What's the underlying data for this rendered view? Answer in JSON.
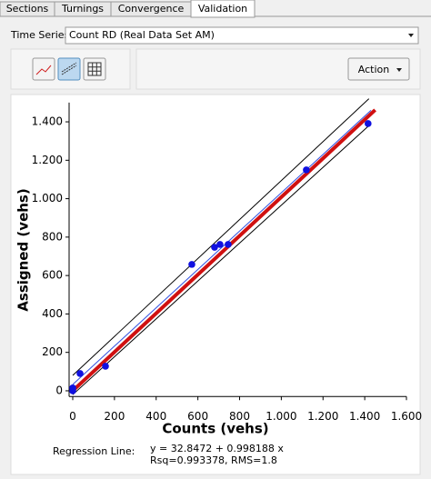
{
  "tabs": [
    "Sections",
    "Turnings",
    "Convergence",
    "Validation"
  ],
  "time_series": {
    "label": "Time Series:",
    "value": "Count RD (Real Data Set AM)"
  },
  "action_button": "Action",
  "chart_data": {
    "type": "scatter",
    "xlabel": "Counts (vehs)",
    "ylabel": "Assigned (vehs)",
    "xlim": [
      0,
      1600
    ],
    "ylim": [
      -30,
      1500
    ],
    "xticks": [
      0,
      200,
      400,
      600,
      800,
      {
        "value": 1000,
        "label": "1.000"
      },
      {
        "value": 1200,
        "label": "1.200"
      },
      {
        "value": 1400,
        "label": "1.400"
      },
      {
        "value": 1600,
        "label": "1.600"
      }
    ],
    "yticks": [
      0,
      200,
      400,
      600,
      800,
      {
        "value": 1000,
        "label": "1.000"
      },
      {
        "value": 1200,
        "label": "1.200"
      },
      {
        "value": 1400,
        "label": "1.400"
      }
    ],
    "series": [
      {
        "color": "#1010e0",
        "x": [
          0,
          0,
          35,
          157,
          571,
          680,
          706,
          745,
          1120,
          1416
        ],
        "values": [
          0,
          15,
          90,
          128,
          658,
          747,
          762,
          762,
          1150,
          1391
        ]
      }
    ],
    "lines": [
      {
        "color": "#000000",
        "width": 1,
        "x": [
          0,
          1420
        ],
        "y": [
          80,
          1520
        ]
      },
      {
        "color": "#000000",
        "width": 1,
        "x": [
          0,
          1430
        ],
        "y": [
          -20,
          1390
        ]
      },
      {
        "color": "#d01010",
        "width": 4,
        "x": [
          0,
          1450
        ],
        "y": [
          0,
          1462
        ]
      },
      {
        "color": "#3050e0",
        "width": 1,
        "x": [
          0,
          1430
        ],
        "y": [
          33,
          1460
        ]
      }
    ],
    "regression": {
      "label": "Regression Line:",
      "equation": "y = 32.8472 + 0.998188 x",
      "stats": "Rsq=0.993378, RMS=1.8"
    }
  }
}
